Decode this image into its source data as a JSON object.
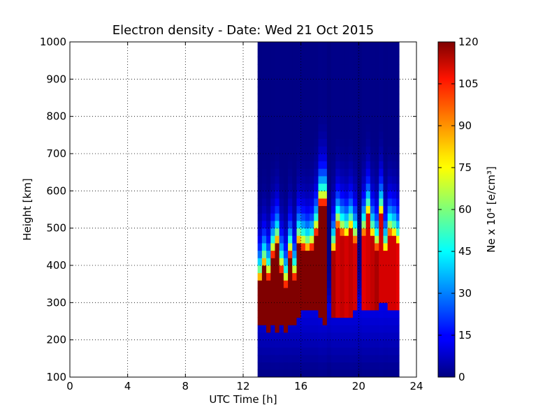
{
  "chart_data": {
    "type": "heatmap",
    "title": "Electron density - Date: Wed 21 Oct 2015",
    "xlabel": "UTC Time [h]",
    "ylabel": "Height [km]",
    "xlim": [
      0,
      24
    ],
    "ylim": [
      100,
      1000
    ],
    "xticks": [
      "0",
      "4",
      "8",
      "12",
      "16",
      "20",
      "24"
    ],
    "yticks": [
      "100",
      "200",
      "300",
      "400",
      "500",
      "600",
      "700",
      "800",
      "900",
      "1000"
    ],
    "grid": true,
    "colormap": "jet",
    "colorbar": {
      "label": "Ne x 10⁴ [e/cm³]",
      "min": 0,
      "max": 120,
      "ticks": [
        "0",
        "15",
        "30",
        "45",
        "60",
        "75",
        "90",
        "105",
        "120"
      ]
    },
    "data_time_range_h": [
      13.0,
      22.8
    ],
    "columns": [
      {
        "t": 13.0,
        "b": 250,
        "p": 120,
        "top": 350,
        "d": 0.5
      },
      {
        "t": 13.3,
        "b": 240,
        "p": 120,
        "top": 390,
        "d": 0.6
      },
      {
        "t": 13.6,
        "b": 230,
        "p": 120,
        "top": 360,
        "d": 0.6
      },
      {
        "t": 13.9,
        "b": 235,
        "p": 120,
        "top": 420,
        "d": 0.7
      },
      {
        "t": 14.2,
        "b": 230,
        "p": 120,
        "top": 450,
        "d": 0.8
      },
      {
        "t": 14.5,
        "b": 240,
        "p": 120,
        "top": 380,
        "d": 0.7
      },
      {
        "t": 14.8,
        "b": 230,
        "p": 120,
        "top": 340,
        "d": 0.6
      },
      {
        "t": 15.1,
        "b": 235,
        "p": 120,
        "top": 420,
        "d": 0.7
      },
      {
        "t": 15.4,
        "b": 240,
        "p": 120,
        "top": 360,
        "d": 0.6
      },
      {
        "t": 15.7,
        "b": 270,
        "p": 120,
        "top": 450,
        "d": 0.6
      },
      {
        "t": 16.0,
        "b": 280,
        "p": 120,
        "top": 440,
        "d": 0.6
      },
      {
        "t": 16.3,
        "b": 280,
        "p": 120,
        "top": 430,
        "d": 0.6
      },
      {
        "t": 16.6,
        "b": 280,
        "p": 120,
        "top": 440,
        "d": 0.6
      },
      {
        "t": 16.9,
        "b": 275,
        "p": 120,
        "top": 480,
        "d": 0.6
      },
      {
        "t": 17.2,
        "b": 270,
        "p": 120,
        "top": 560,
        "d": 1.1
      },
      {
        "t": 17.5,
        "b": 250,
        "p": 120,
        "top": 560,
        "d": 1.0
      },
      {
        "t": 17.8,
        "b": 300,
        "p": 8,
        "top": 310,
        "d": 0.3
      },
      {
        "t": 18.1,
        "b": 270,
        "p": 115,
        "top": 430,
        "d": 1.0
      },
      {
        "t": 18.4,
        "b": 270,
        "p": 110,
        "top": 500,
        "d": 1.0
      },
      {
        "t": 18.7,
        "b": 270,
        "p": 112,
        "top": 480,
        "d": 0.9
      },
      {
        "t": 19.0,
        "b": 270,
        "p": 110,
        "top": 470,
        "d": 0.9
      },
      {
        "t": 19.3,
        "b": 270,
        "p": 112,
        "top": 490,
        "d": 1.0
      },
      {
        "t": 19.6,
        "b": 280,
        "p": 110,
        "top": 460,
        "d": 0.9
      },
      {
        "t": 19.9,
        "b": 300,
        "p": 10,
        "top": 310,
        "d": 0.3
      },
      {
        "t": 20.2,
        "b": 280,
        "p": 108,
        "top": 480,
        "d": 1.0
      },
      {
        "t": 20.5,
        "b": 280,
        "p": 110,
        "top": 530,
        "d": 1.0
      },
      {
        "t": 20.8,
        "b": 280,
        "p": 112,
        "top": 470,
        "d": 0.9
      },
      {
        "t": 21.1,
        "b": 290,
        "p": 115,
        "top": 440,
        "d": 0.8
      },
      {
        "t": 21.4,
        "b": 300,
        "p": 110,
        "top": 530,
        "d": 1.1
      },
      {
        "t": 21.7,
        "b": 300,
        "p": 110,
        "top": 430,
        "d": 0.8
      },
      {
        "t": 22.0,
        "b": 290,
        "p": 110,
        "top": 480,
        "d": 1.0
      },
      {
        "t": 22.3,
        "b": 290,
        "p": 110,
        "top": 470,
        "d": 1.0
      },
      {
        "t": 22.6,
        "b": 290,
        "p": 108,
        "top": 450,
        "d": 1.0
      }
    ]
  }
}
